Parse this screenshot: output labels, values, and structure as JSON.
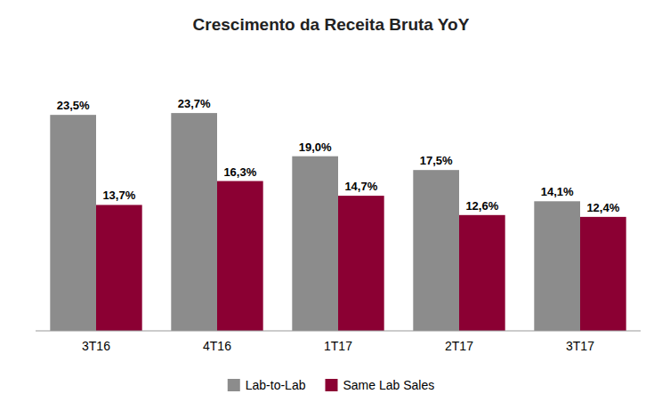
{
  "chart_data": {
    "type": "bar",
    "title": "Crescimento da Receita Bruta YoY",
    "categories": [
      "3T16",
      "4T16",
      "1T17",
      "2T17",
      "3T17"
    ],
    "series": [
      {
        "name": "Lab-to-Lab",
        "color": "#8C8C8C",
        "values": [
          23.5,
          23.7,
          19.0,
          17.5,
          14.1
        ],
        "value_labels": [
          "23,5%",
          "23,7%",
          "19,0%",
          "17,5%",
          "14,1%"
        ]
      },
      {
        "name": "Same Lab Sales",
        "color": "#8B0033",
        "values": [
          13.7,
          16.3,
          14.7,
          12.6,
          12.4
        ],
        "value_labels": [
          "13,7%",
          "16,3%",
          "14,7%",
          "12,6%",
          "12,4%"
        ]
      }
    ],
    "ylim": [
      0,
      30
    ],
    "grid": false,
    "legend": "bottom",
    "data_labels": true,
    "tick_labels": "x"
  }
}
